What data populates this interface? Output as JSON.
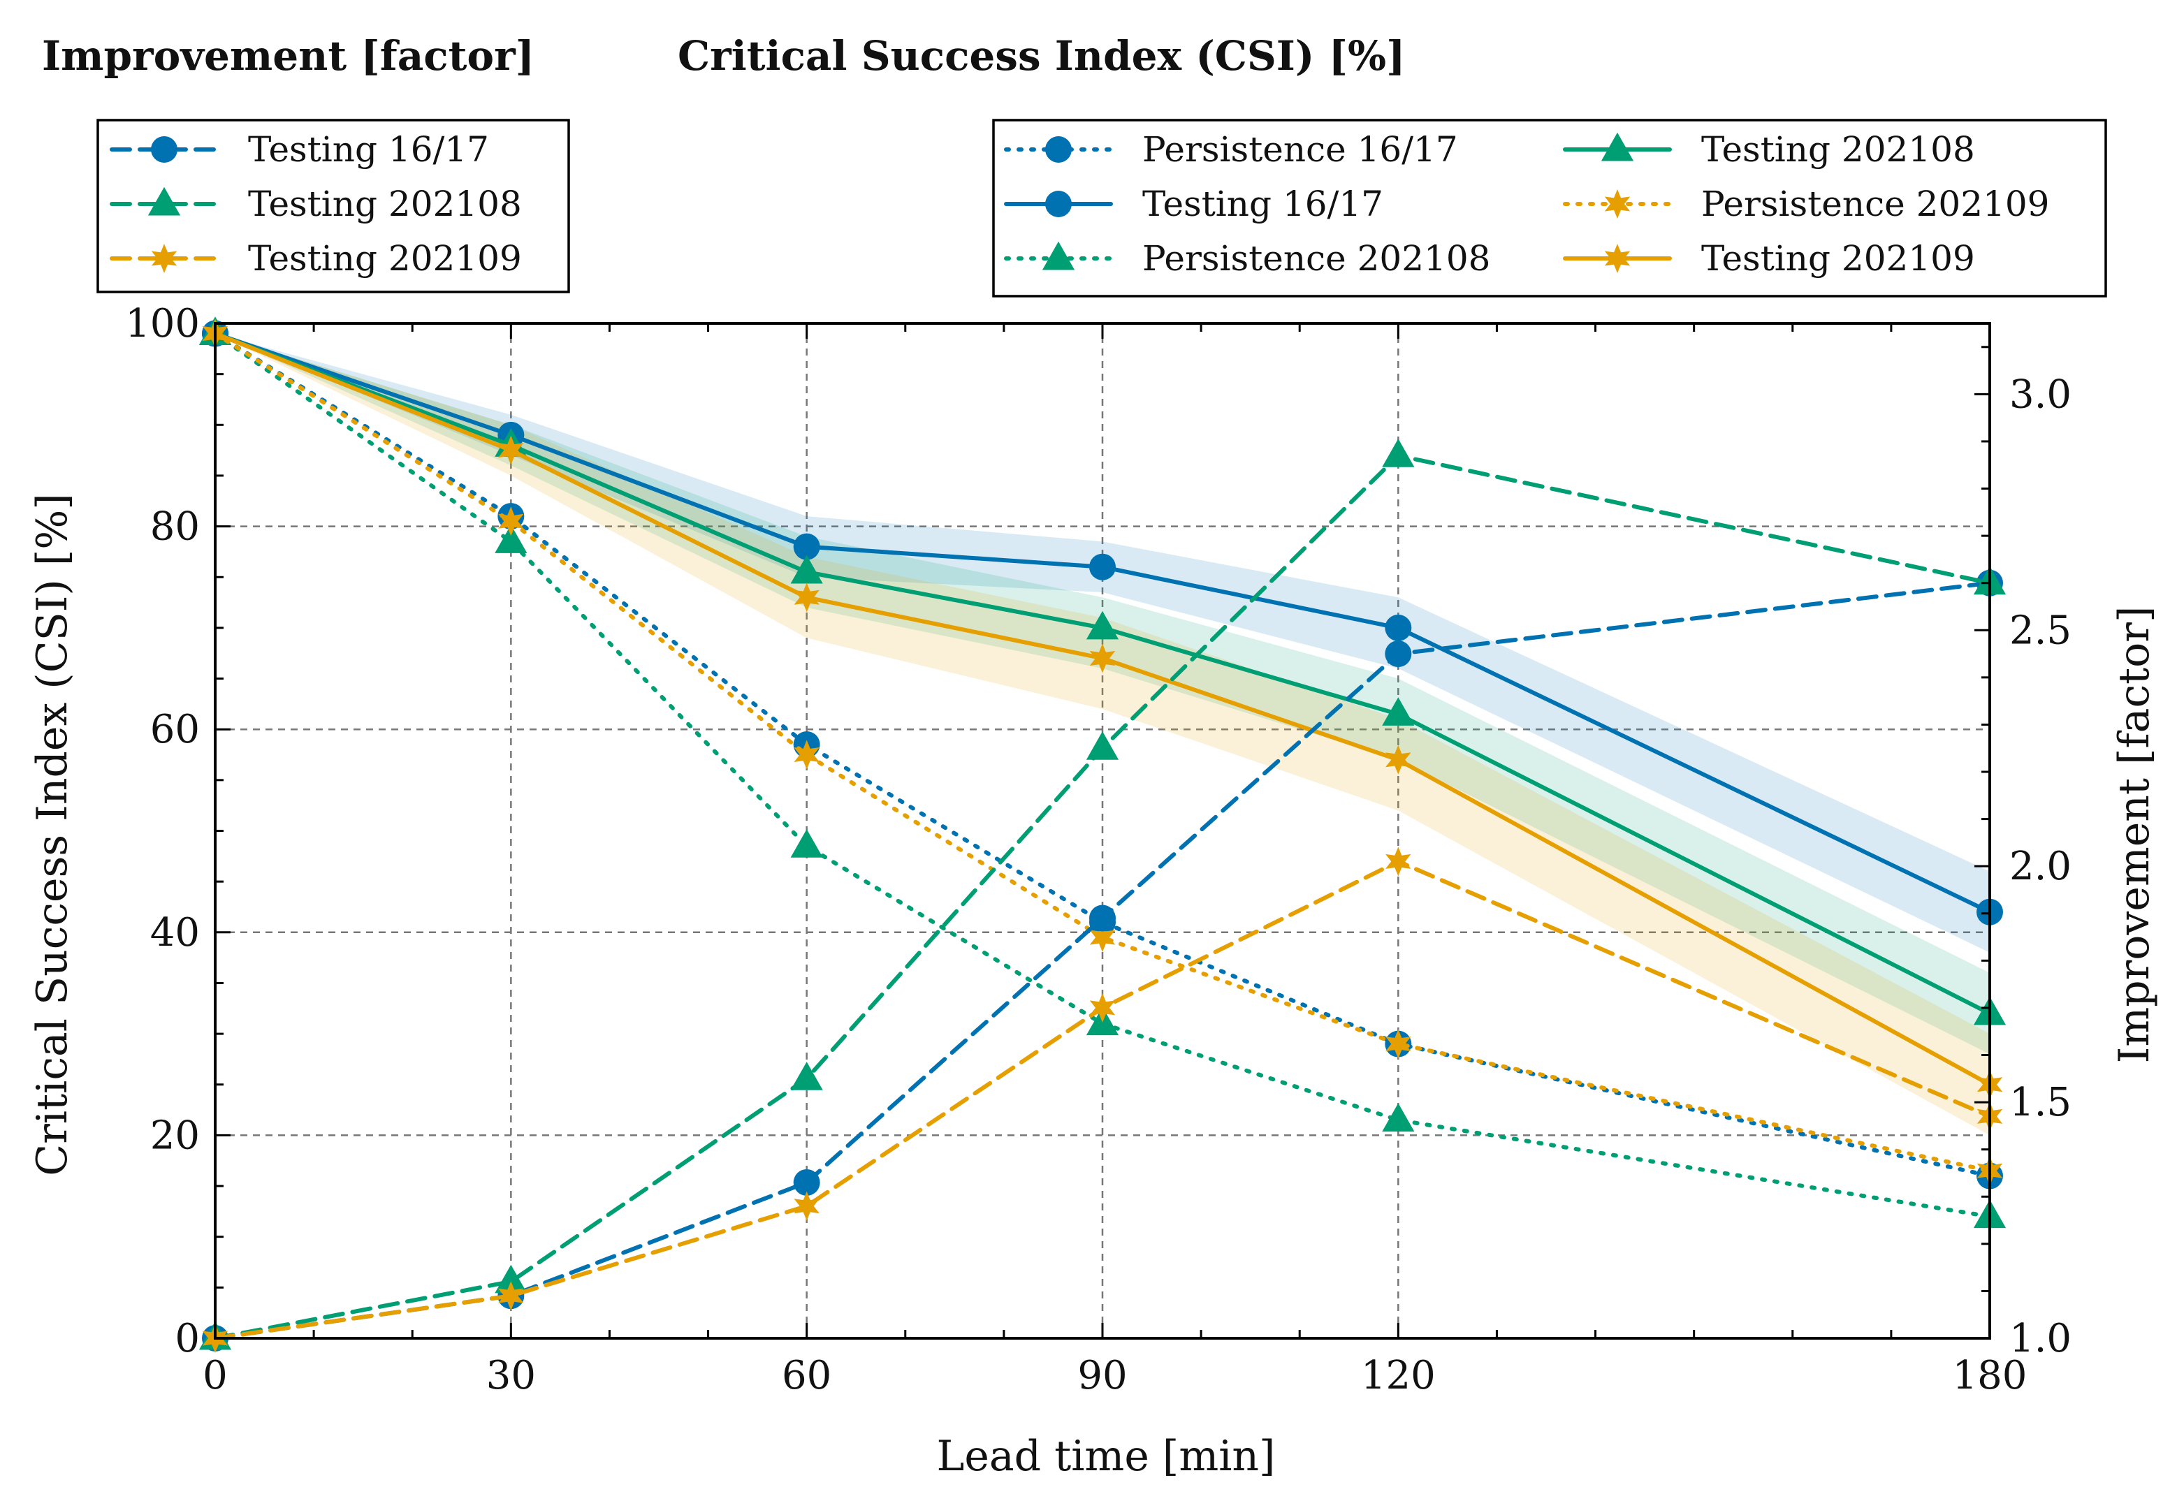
{
  "chart_data": {
    "type": "line",
    "headers": {
      "left": "Improvement [factor]",
      "right": "Critical Success Index (CSI) [%]"
    },
    "xlabel": "Lead time [min]",
    "ylabel_left": "Critical Success Index (CSI) [%]",
    "ylabel_right": "Improvement [factor]",
    "x": [
      0,
      30,
      60,
      90,
      120,
      180
    ],
    "xticks": [
      0,
      30,
      60,
      90,
      120,
      180
    ],
    "xlim": [
      0,
      180
    ],
    "ylim_left": [
      0,
      100
    ],
    "yticks_left": [
      0,
      20,
      40,
      60,
      80,
      100
    ],
    "ylim_right": [
      1.0,
      3.15
    ],
    "yticks_right": [
      "1.0",
      "1.5",
      "2.0",
      "2.5",
      "3.0"
    ],
    "grid": true,
    "colors": {
      "blue": "#0072b2",
      "green": "#009e73",
      "orange": "#e69f00"
    },
    "csi_series": [
      {
        "name": "Persistence 16/17",
        "color": "#0072b2",
        "style": "dotted",
        "marker": "circle",
        "values": [
          99,
          81,
          58.5,
          41,
          29,
          16
        ]
      },
      {
        "name": "Testing 16/17",
        "color": "#0072b2",
        "style": "solid",
        "marker": "circle",
        "values": [
          99,
          89,
          78,
          76,
          70,
          42
        ],
        "band_lower": [
          99,
          87,
          75,
          73.5,
          66,
          38
        ],
        "band_upper": [
          99,
          91,
          81,
          78.5,
          73,
          46
        ]
      },
      {
        "name": "Persistence 202108",
        "color": "#009e73",
        "style": "dotted",
        "marker": "triangle",
        "values": [
          99,
          78.5,
          48.5,
          31,
          21.5,
          12
        ]
      },
      {
        "name": "Testing 202108",
        "color": "#009e73",
        "style": "solid",
        "marker": "triangle",
        "values": [
          99,
          88,
          75.5,
          70,
          61.5,
          32
        ],
        "band_lower": [
          99,
          86,
          72,
          66,
          57,
          28
        ],
        "band_upper": [
          99,
          90,
          79,
          73,
          65,
          36
        ]
      },
      {
        "name": "Persistence 202109",
        "color": "#e69f00",
        "style": "dotted",
        "marker": "star",
        "values": [
          99,
          80.5,
          57.5,
          39.5,
          29,
          16.5
        ]
      },
      {
        "name": "Testing 202109",
        "color": "#e69f00",
        "style": "solid",
        "marker": "star",
        "values": [
          99,
          87.5,
          73,
          67,
          57,
          25
        ],
        "band_lower": [
          99,
          85,
          69,
          62,
          52,
          20
        ],
        "band_upper": [
          99,
          90,
          77,
          71,
          61,
          30
        ]
      }
    ],
    "improvement_series": [
      {
        "name": "Testing 16/17",
        "color": "#0072b2",
        "style": "dashed",
        "marker": "circle",
        "values": [
          1.0,
          1.09,
          1.33,
          1.89,
          2.45,
          2.6
        ]
      },
      {
        "name": "Testing 202108",
        "color": "#009e73",
        "style": "dashed",
        "marker": "triangle",
        "values": [
          1.0,
          1.12,
          1.55,
          2.25,
          2.87,
          2.6
        ]
      },
      {
        "name": "Testing 202109",
        "color": "#e69f00",
        "style": "dashed",
        "marker": "star",
        "values": [
          1.0,
          1.09,
          1.28,
          1.7,
          2.01,
          1.47
        ]
      }
    ],
    "legend_improvement": {
      "placement": "top-left",
      "entries": [
        "Testing 16/17",
        "Testing 202108",
        "Testing 202109"
      ]
    },
    "legend_csi": {
      "placement": "top-right",
      "entries": [
        "Persistence 16/17",
        "Testing 16/17",
        "Persistence 202108",
        "Testing 202108",
        "Persistence 202109",
        "Testing 202109"
      ]
    }
  }
}
